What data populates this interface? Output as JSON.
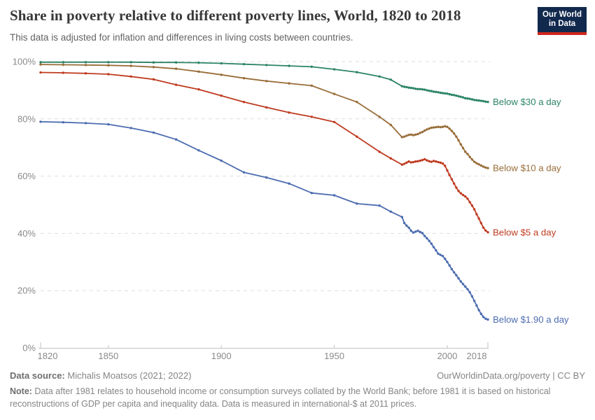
{
  "header": {
    "title": "Share in poverty relative to different poverty lines, World, 1820 to 2018",
    "subtitle": "This data is adjusted for inflation and differences in living costs between countries.",
    "logo": {
      "line1": "Our World",
      "line2": "in Data",
      "bg": "#12294E",
      "accent": "#CE261E"
    }
  },
  "footer": {
    "source_label": "Data source:",
    "source_text": " Michalis Moatsos (2021; 2022)",
    "license": "OurWorldinData.org/poverty | CC BY",
    "note_label": "Note:",
    "note_text": " Data after 1981 relates to household income or consumption surveys collated by the World Bank; before 1981 it is based on historical reconstructions of GDP per capita and inequality data. Data is measured in international-$ at 2011 prices."
  },
  "chart_data": {
    "type": "line",
    "title": "Share in poverty relative to different poverty lines, World, 1820 to 2018",
    "xlabel": "",
    "ylabel": "",
    "x_range": [
      1820,
      2018
    ],
    "ylim": [
      0,
      100
    ],
    "x_ticks": [
      1820,
      1850,
      1900,
      1950,
      2000,
      2018
    ],
    "y_ticks": [
      0,
      20,
      40,
      60,
      80,
      100
    ],
    "y_tick_suffix": "%",
    "grid": "dashed-horizontal",
    "legend_position": "right-of-line-ends",
    "marker": "point",
    "axis_color": "#c2c2c2",
    "grid_color": "#dedede",
    "tick_label_color": "#8a8a8a",
    "years": [
      1820,
      1830,
      1840,
      1850,
      1860,
      1870,
      1880,
      1890,
      1900,
      1910,
      1920,
      1930,
      1940,
      1950,
      1960,
      1970,
      1975,
      1980,
      1981,
      1982,
      1983,
      1984,
      1985,
      1986,
      1987,
      1988,
      1989,
      1990,
      1991,
      1992,
      1993,
      1994,
      1995,
      1996,
      1997,
      1998,
      1999,
      2000,
      2001,
      2002,
      2003,
      2004,
      2005,
      2006,
      2007,
      2008,
      2009,
      2010,
      2011,
      2012,
      2013,
      2014,
      2015,
      2016,
      2017,
      2018
    ],
    "series": [
      {
        "name": "Below $30 a day",
        "slug": "below-30",
        "color": "#2C8465",
        "values": [
          99.8,
          99.8,
          99.8,
          99.8,
          99.8,
          99.7,
          99.7,
          99.6,
          99.4,
          99.1,
          98.8,
          98.5,
          98.2,
          97.3,
          96.3,
          94.8,
          93.7,
          91.4,
          91.2,
          91.1,
          90.9,
          90.8,
          90.7,
          90.5,
          90.4,
          90.4,
          90.3,
          90.2,
          90.0,
          89.8,
          89.7,
          89.5,
          89.4,
          89.3,
          89.1,
          89.0,
          88.9,
          88.8,
          88.6,
          88.4,
          88.3,
          88.1,
          87.9,
          87.7,
          87.5,
          87.2,
          87.1,
          87.0,
          86.8,
          86.6,
          86.5,
          86.4,
          86.3,
          86.2,
          86.0,
          85.9
        ]
      },
      {
        "name": "Below $10 a day",
        "slug": "below-10",
        "color": "#996D39",
        "values": [
          99.0,
          98.9,
          98.8,
          98.7,
          98.5,
          98.1,
          97.5,
          96.5,
          95.4,
          94.2,
          93.2,
          92.4,
          91.6,
          88.7,
          85.9,
          80.7,
          77.9,
          73.6,
          73.8,
          74.1,
          74.4,
          74.5,
          74.3,
          74.5,
          74.7,
          75.1,
          75.4,
          75.9,
          76.3,
          76.6,
          76.9,
          77.0,
          77.1,
          77.2,
          77.1,
          77.2,
          77.4,
          77.2,
          76.6,
          75.8,
          74.9,
          73.8,
          72.5,
          71.1,
          69.8,
          68.5,
          67.7,
          66.7,
          65.8,
          65.0,
          64.5,
          64.1,
          63.7,
          63.3,
          63.0,
          62.8
        ]
      },
      {
        "name": "Below $5 a day",
        "slug": "below-5",
        "color": "#BF3B21",
        "values": [
          96.2,
          96.1,
          95.9,
          95.6,
          94.8,
          93.8,
          91.9,
          90.3,
          88.1,
          85.9,
          84.0,
          82.2,
          80.7,
          78.9,
          73.8,
          68.5,
          66.2,
          64.0,
          64.3,
          64.7,
          65.1,
          64.8,
          64.9,
          65.1,
          65.2,
          65.4,
          65.6,
          65.9,
          65.5,
          65.2,
          65.0,
          65.3,
          65.1,
          64.9,
          64.7,
          64.4,
          63.6,
          62.0,
          60.4,
          58.9,
          57.4,
          56.0,
          54.8,
          54.0,
          53.4,
          52.9,
          52.1,
          50.9,
          49.7,
          48.4,
          46.7,
          45.2,
          43.6,
          42.0,
          41.0,
          40.4
        ]
      },
      {
        "name": "Below $1.90 a day",
        "slug": "below-1-90",
        "color": "#4C6CB0",
        "values": [
          79.0,
          78.8,
          78.5,
          78.1,
          76.8,
          75.2,
          72.8,
          69.0,
          65.4,
          61.3,
          59.5,
          57.4,
          54.1,
          53.3,
          50.4,
          49.7,
          47.6,
          45.7,
          43.6,
          42.7,
          42.0,
          40.9,
          40.3,
          40.6,
          40.9,
          40.5,
          40.1,
          39.1,
          38.3,
          37.4,
          36.4,
          35.2,
          34.1,
          32.9,
          32.5,
          32.1,
          31.1,
          30.0,
          28.8,
          27.5,
          26.4,
          25.4,
          24.3,
          23.2,
          22.3,
          21.4,
          20.5,
          19.4,
          18.0,
          16.4,
          14.8,
          13.2,
          11.9,
          10.8,
          10.2,
          9.9
        ]
      }
    ]
  }
}
